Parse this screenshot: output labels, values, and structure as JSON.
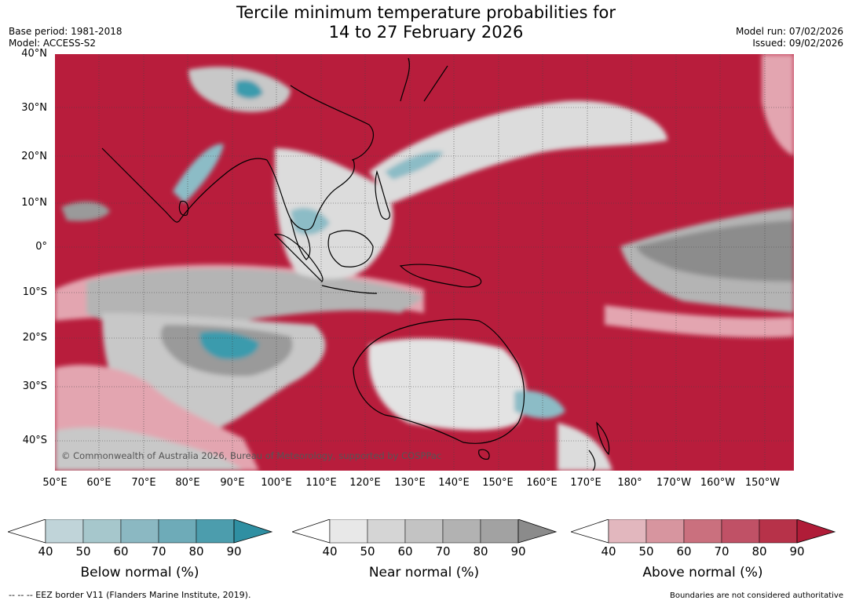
{
  "title": {
    "line1": "Tercile minimum temperature probabilities for",
    "line2": "14 to 27 February 2026"
  },
  "meta": {
    "base_period": "Base period: 1981-2018",
    "model": "Model: ACCESS-S2",
    "model_run": "Model run: 07/02/2026",
    "issued": "Issued: 09/02/2026"
  },
  "map": {
    "lat_labels": [
      "40°N",
      "30°N",
      "20°N",
      "10°N",
      "0°",
      "10°S",
      "20°S",
      "30°S",
      "40°S"
    ],
    "lon_labels": [
      "50°E",
      "60°E",
      "70°E",
      "80°E",
      "90°E",
      "100°E",
      "110°E",
      "120°E",
      "130°E",
      "140°E",
      "150°E",
      "160°E",
      "170°E",
      "180°",
      "170°W",
      "160°W",
      "150°W"
    ],
    "copyright": "© Commonwealth of Australia 2026, Bureau of Meteorology, supported by COSPPac",
    "colors": {
      "above_strong": "#b81d3c",
      "above_mid": "#cc5a6e",
      "above_light": "#e3a5b0",
      "near_dark": "#8c8c8c",
      "near_mid": "#b4b4b4",
      "near_light": "#dcdcdc",
      "below_strong": "#3a9bad",
      "below_light": "#8cbcc6",
      "land_line": "#000000"
    }
  },
  "colorbars": {
    "ticks": [
      "40",
      "50",
      "60",
      "70",
      "80",
      "90"
    ],
    "below": {
      "label": "Below normal (%)",
      "colors": [
        "#c0d4d9",
        "#a6c7cc",
        "#8bb8c2",
        "#6eabb8",
        "#4c9dad",
        "#2f8fa2"
      ]
    },
    "near": {
      "label": "Near normal (%)",
      "colors": [
        "#e8e8e8",
        "#d5d5d5",
        "#c3c3c3",
        "#b2b2b2",
        "#a2a2a2",
        "#8b8b8b"
      ]
    },
    "above": {
      "label": "Above normal (%)",
      "colors": [
        "#e2b7be",
        "#d7959f",
        "#ca707e",
        "#c05166",
        "#b73249",
        "#b01c38"
      ]
    }
  },
  "footer": {
    "eez": "--  --  -- EEZ border V11 (Flanders Marine Institute, 2019).",
    "disclaimer": "Boundaries are not considered authoritative"
  }
}
